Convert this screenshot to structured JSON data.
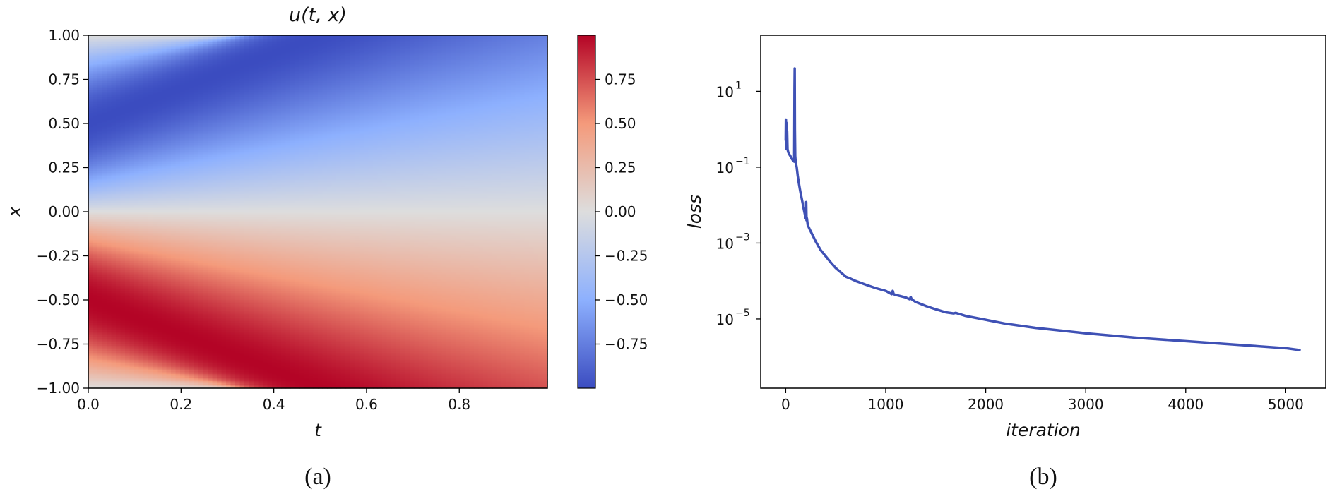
{
  "chart_data": [
    {
      "type": "heatmap",
      "title": "u(t, x)",
      "xlabel": "t",
      "ylabel": "x",
      "xlim": [
        0.0,
        0.99
      ],
      "ylim": [
        -1.0,
        1.0
      ],
      "x_ticks": [
        "0.0",
        "0.2",
        "0.4",
        "0.6",
        "0.8"
      ],
      "y_ticks": [
        "1.00",
        "0.75",
        "0.50",
        "0.25",
        "0.00",
        "−0.25",
        "−0.50",
        "−0.75",
        "−1.00"
      ],
      "colorbar": {
        "colormap": "coolwarm",
        "range": [
          -1.0,
          1.0
        ],
        "ticks": [
          "0.75",
          "0.50",
          "0.25",
          "0.00",
          "−0.25",
          "−0.50",
          "−0.75"
        ]
      },
      "colors": {
        "low": "#3b4cc0",
        "mid": "#dddddd",
        "high": "#b40426"
      },
      "panel_label": "(a)"
    },
    {
      "type": "line",
      "xlabel": "iteration",
      "ylabel": "loss",
      "yscale": "log",
      "xlim": [
        -250,
        5400
      ],
      "ylim": [
        1.5e-07,
        300
      ],
      "x_ticks": [
        "0",
        "1000",
        "2000",
        "3000",
        "4000",
        "5000"
      ],
      "y_ticks": [
        {
          "base": "10",
          "exp": "1"
        },
        {
          "base": "10",
          "exp": "−1"
        },
        {
          "base": "10",
          "exp": "−3"
        },
        {
          "base": "10",
          "exp": "−5"
        }
      ],
      "line_color": "#3f51b5",
      "series": [
        {
          "x": [
            0,
            2,
            4,
            6,
            8,
            10,
            12,
            14,
            18,
            25,
            35,
            45,
            55,
            65,
            75,
            85,
            88,
            90,
            92,
            95,
            100,
            110,
            120,
            130,
            140,
            150,
            160,
            170,
            180,
            190,
            200,
            205,
            208,
            212,
            220,
            240,
            260,
            300,
            350,
            400,
            450,
            500,
            550,
            600,
            650,
            700,
            800,
            900,
            1000,
            1060,
            1070,
            1080,
            1100,
            1200,
            1240,
            1250,
            1260,
            1300,
            1400,
            1500,
            1600,
            1680,
            1700,
            1800,
            2000,
            2200,
            2500,
            2700,
            3000,
            3500,
            4000,
            4500,
            5000,
            5150
          ],
          "y": [
            0.5,
            1.8,
            0.8,
            1.5,
            0.3,
            1.2,
            0.35,
            0.9,
            0.3,
            0.25,
            0.22,
            0.2,
            0.18,
            0.16,
            0.15,
            0.14,
            12,
            40,
            1.0,
            0.2,
            0.13,
            0.1,
            0.06,
            0.04,
            0.028,
            0.02,
            0.015,
            0.011,
            0.008,
            0.006,
            0.0045,
            0.012,
            0.004,
            0.0045,
            0.003,
            0.0023,
            0.0018,
            0.0011,
            0.00065,
            0.00045,
            0.00031,
            0.00022,
            0.00017,
            0.00013,
            0.000115,
            0.0001,
            8e-05,
            6.5e-05,
            5.5e-05,
            4.5e-05,
            5.5e-05,
            4.5e-05,
            4.3e-05,
            3.7e-05,
            3.3e-05,
            3.8e-05,
            3.3e-05,
            2.8e-05,
            2.2e-05,
            1.8e-05,
            1.5e-05,
            1.4e-05,
            1.45e-05,
            1.2e-05,
            9.5e-06,
            7.5e-06,
            5.8e-06,
            5.1e-06,
            4.2e-06,
            3.2e-06,
            2.6e-06,
            2.1e-06,
            1.7e-06,
            1.5e-06
          ]
        }
      ],
      "panel_label": "(b)"
    }
  ]
}
